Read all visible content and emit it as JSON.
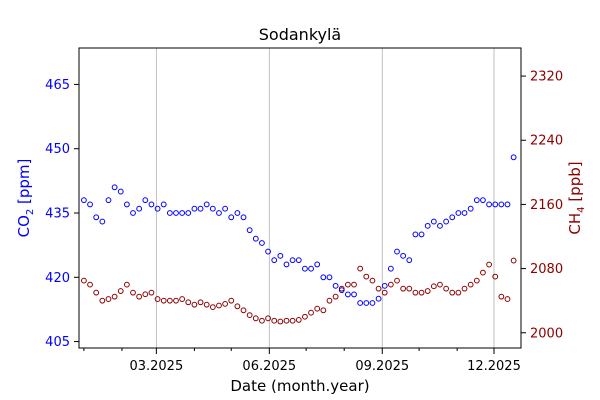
{
  "chart_data": {
    "type": "scatter",
    "title": "Sodankylä",
    "xlabel": "Date (month.year)",
    "ylabel_left": {
      "pre": "CO",
      "sub": "2",
      "post": " [ppm]"
    },
    "ylabel_right": {
      "pre": "CH",
      "sub": "4",
      "post": " [ppb]"
    },
    "x_unit": "day of year 2025",
    "xlim": [
      -4,
      356
    ],
    "x_ticks": [
      {
        "day": 59,
        "label": "03.2025"
      },
      {
        "day": 151,
        "label": "06.2025"
      },
      {
        "day": 243,
        "label": "09.2025"
      },
      {
        "day": 334,
        "label": "12.2025"
      }
    ],
    "x_minor_ticks": [
      0,
      31,
      90,
      120,
      181,
      212,
      273,
      304
    ],
    "grid": "vertical",
    "ylim_left": [
      403.5,
      473.5
    ],
    "ylim_right": [
      1981,
      2355
    ],
    "yticks_left": [
      405,
      420,
      435,
      450,
      465
    ],
    "yticks_right": [
      2000,
      2080,
      2160,
      2240,
      2320
    ],
    "colors": {
      "co2": "#0000ff",
      "ch4": "#8b0000",
      "grid": "#b0b0b0"
    },
    "series": [
      {
        "name": "CO2",
        "axis": "left",
        "color": "#0000ff",
        "unit": "ppm",
        "x": [
          0,
          5,
          10,
          15,
          20,
          25,
          30,
          35,
          40,
          45,
          50,
          55,
          60,
          65,
          70,
          75,
          80,
          85,
          90,
          95,
          100,
          105,
          110,
          115,
          120,
          125,
          130,
          135,
          140,
          145,
          150,
          155,
          160,
          165,
          170,
          175,
          180,
          185,
          190,
          195,
          200,
          205,
          210,
          215,
          220,
          225,
          230,
          235,
          240,
          245,
          250,
          255,
          260,
          265,
          270,
          275,
          280,
          285,
          290,
          295,
          300,
          305,
          310,
          315,
          320,
          325,
          330,
          335,
          340,
          345,
          350
        ],
        "values": [
          438,
          437,
          434,
          433,
          438,
          441,
          440,
          437,
          435,
          436,
          438,
          437,
          436,
          437,
          435,
          435,
          435,
          435,
          436,
          436,
          437,
          436,
          435,
          436,
          434,
          435,
          434,
          431,
          429,
          428,
          426,
          424,
          425,
          423,
          424,
          424,
          422,
          422,
          423,
          420,
          420,
          418,
          417,
          416,
          416,
          414,
          414,
          414,
          415,
          418,
          422,
          426,
          425,
          424,
          430,
          430,
          432,
          433,
          432,
          433,
          434,
          435,
          435,
          436,
          438,
          438,
          437,
          437,
          437,
          437,
          448
        ]
      },
      {
        "name": "CH4",
        "axis": "right",
        "color": "#8b0000",
        "unit": "ppb",
        "x": [
          0,
          5,
          10,
          15,
          20,
          25,
          30,
          35,
          40,
          45,
          50,
          55,
          60,
          65,
          70,
          75,
          80,
          85,
          90,
          95,
          100,
          105,
          110,
          115,
          120,
          125,
          130,
          135,
          140,
          145,
          150,
          155,
          160,
          165,
          170,
          175,
          180,
          185,
          190,
          195,
          200,
          205,
          210,
          215,
          220,
          225,
          230,
          235,
          240,
          245,
          250,
          255,
          260,
          265,
          270,
          275,
          280,
          285,
          290,
          295,
          300,
          305,
          310,
          315,
          320,
          325,
          330,
          335,
          340,
          345,
          350
        ],
        "values": [
          2065,
          2060,
          2050,
          2040,
          2042,
          2045,
          2052,
          2060,
          2050,
          2045,
          2048,
          2050,
          2042,
          2040,
          2040,
          2040,
          2042,
          2038,
          2035,
          2038,
          2035,
          2032,
          2034,
          2036,
          2040,
          2033,
          2028,
          2022,
          2018,
          2015,
          2018,
          2015,
          2014,
          2015,
          2015,
          2016,
          2020,
          2025,
          2030,
          2028,
          2040,
          2045,
          2055,
          2060,
          2060,
          2080,
          2070,
          2065,
          2055,
          2050,
          2060,
          2065,
          2055,
          2055,
          2050,
          2050,
          2052,
          2058,
          2060,
          2055,
          2050,
          2050,
          2055,
          2060,
          2065,
          2075,
          2085,
          2070,
          2045,
          2042,
          2090
        ]
      }
    ]
  }
}
